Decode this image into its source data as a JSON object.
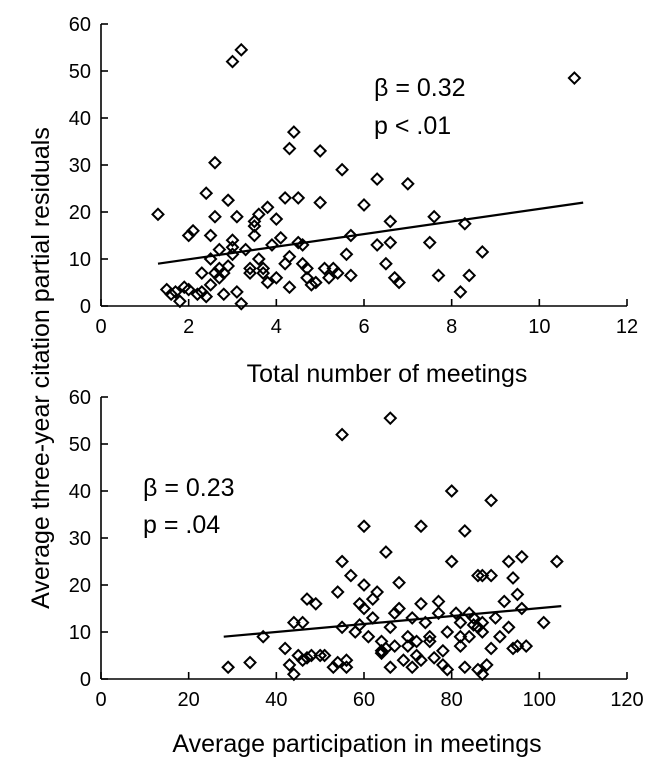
{
  "chart_data": {
    "type": "scatter",
    "shared_ylabel": "Average three-year citation partial residuals",
    "panels": [
      {
        "xlabel": "Total number of meetings",
        "xlim": [
          0,
          12
        ],
        "ylim": [
          0,
          60
        ],
        "xticks": [
          0,
          2,
          4,
          6,
          8,
          10,
          12
        ],
        "yticks": [
          0,
          10,
          20,
          30,
          40,
          50,
          60
        ],
        "annotation": {
          "beta": "β = 0.32",
          "p": "p < .01"
        },
        "fit": {
          "x": [
            1.3,
            11
          ],
          "y": [
            9,
            22
          ]
        },
        "points": [
          [
            1.3,
            19.5
          ],
          [
            1.5,
            3.5
          ],
          [
            1.6,
            2.5
          ],
          [
            1.7,
            3
          ],
          [
            1.8,
            1
          ],
          [
            1.9,
            4
          ],
          [
            2,
            3.5
          ],
          [
            2,
            15
          ],
          [
            2.1,
            16
          ],
          [
            2.2,
            2.5
          ],
          [
            2.3,
            3
          ],
          [
            2.3,
            7
          ],
          [
            2.4,
            24
          ],
          [
            2.4,
            2
          ],
          [
            2.5,
            4.5
          ],
          [
            2.5,
            10
          ],
          [
            2.5,
            15
          ],
          [
            2.6,
            19
          ],
          [
            2.6,
            7
          ],
          [
            2.6,
            30.5
          ],
          [
            2.7,
            6
          ],
          [
            2.7,
            8
          ],
          [
            2.7,
            12
          ],
          [
            2.8,
            2.5
          ],
          [
            2.8,
            7
          ],
          [
            2.9,
            8.5
          ],
          [
            2.9,
            22.5
          ],
          [
            3,
            11
          ],
          [
            3,
            12.5
          ],
          [
            3,
            14
          ],
          [
            3,
            52
          ],
          [
            3.1,
            3
          ],
          [
            3.1,
            19
          ],
          [
            3.2,
            0.5
          ],
          [
            3.2,
            54.5
          ],
          [
            3.3,
            12
          ],
          [
            3.4,
            7
          ],
          [
            3.4,
            8
          ],
          [
            3.5,
            15
          ],
          [
            3.5,
            17
          ],
          [
            3.5,
            18
          ],
          [
            3.6,
            10
          ],
          [
            3.6,
            19.5
          ],
          [
            3.7,
            7
          ],
          [
            3.7,
            8
          ],
          [
            3.8,
            5
          ],
          [
            3.8,
            21
          ],
          [
            3.9,
            13
          ],
          [
            4,
            6
          ],
          [
            4,
            18.5
          ],
          [
            4.1,
            14.5
          ],
          [
            4.2,
            9
          ],
          [
            4.2,
            23
          ],
          [
            4.3,
            4
          ],
          [
            4.3,
            10.5
          ],
          [
            4.3,
            33.5
          ],
          [
            4.4,
            37
          ],
          [
            4.5,
            13.5
          ],
          [
            4.5,
            23
          ],
          [
            4.6,
            13
          ],
          [
            4.6,
            9
          ],
          [
            4.7,
            6
          ],
          [
            4.7,
            8
          ],
          [
            4.8,
            4.5
          ],
          [
            4.9,
            5
          ],
          [
            5,
            22
          ],
          [
            5,
            33
          ],
          [
            5.1,
            8
          ],
          [
            5.2,
            6
          ],
          [
            5.3,
            8
          ],
          [
            5.4,
            7
          ],
          [
            5.5,
            29
          ],
          [
            5.6,
            11
          ],
          [
            5.7,
            6.5
          ],
          [
            5.7,
            15
          ],
          [
            6,
            21.5
          ],
          [
            6.3,
            13
          ],
          [
            6.3,
            27
          ],
          [
            6.5,
            9
          ],
          [
            6.6,
            13.5
          ],
          [
            6.6,
            18
          ],
          [
            6.7,
            6
          ],
          [
            6.8,
            5
          ],
          [
            7,
            26
          ],
          [
            7.5,
            13.5
          ],
          [
            7.6,
            19
          ],
          [
            7.7,
            6.5
          ],
          [
            8.2,
            3
          ],
          [
            8.3,
            17.5
          ],
          [
            8.4,
            6.5
          ],
          [
            8.7,
            11.5
          ],
          [
            10.8,
            48.5
          ]
        ]
      },
      {
        "xlabel": "Average participation in meetings",
        "xlim": [
          0,
          120
        ],
        "ylim": [
          0,
          60
        ],
        "xticks": [
          0,
          20,
          40,
          60,
          80,
          100,
          120
        ],
        "yticks": [
          0,
          10,
          20,
          30,
          40,
          50,
          60
        ],
        "annotation": {
          "beta": "β = 0.23",
          "p": "p = .04"
        },
        "fit": {
          "x": [
            28,
            105
          ],
          "y": [
            9,
            15.5
          ]
        },
        "points": [
          [
            29,
            2.5
          ],
          [
            34,
            3.5
          ],
          [
            37,
            9
          ],
          [
            42,
            6.5
          ],
          [
            43,
            3
          ],
          [
            44,
            1
          ],
          [
            44,
            12
          ],
          [
            45,
            5
          ],
          [
            46,
            4
          ],
          [
            46,
            12
          ],
          [
            47,
            17
          ],
          [
            47,
            4.5
          ],
          [
            48,
            5
          ],
          [
            49,
            16
          ],
          [
            50,
            5
          ],
          [
            51,
            5
          ],
          [
            53,
            2.5
          ],
          [
            54,
            3.5
          ],
          [
            54,
            18.5
          ],
          [
            55,
            52
          ],
          [
            55,
            25
          ],
          [
            55,
            11
          ],
          [
            56,
            4
          ],
          [
            56,
            2.5
          ],
          [
            57,
            22
          ],
          [
            58,
            10
          ],
          [
            59,
            11.5
          ],
          [
            59,
            16
          ],
          [
            60,
            32.5
          ],
          [
            60,
            15
          ],
          [
            60,
            20
          ],
          [
            61,
            9
          ],
          [
            62,
            13
          ],
          [
            62,
            17
          ],
          [
            63,
            18.5
          ],
          [
            64,
            8
          ],
          [
            64,
            5.5
          ],
          [
            64,
            6
          ],
          [
            65,
            27
          ],
          [
            65,
            6.5
          ],
          [
            66,
            11
          ],
          [
            66,
            2.5
          ],
          [
            66,
            55.5
          ],
          [
            67,
            14
          ],
          [
            67,
            7
          ],
          [
            68,
            20.5
          ],
          [
            68,
            15
          ],
          [
            69,
            4
          ],
          [
            70,
            9
          ],
          [
            70,
            7
          ],
          [
            71,
            13
          ],
          [
            71,
            2.5
          ],
          [
            72,
            8
          ],
          [
            72,
            5
          ],
          [
            73,
            32.5
          ],
          [
            73,
            16
          ],
          [
            73,
            4
          ],
          [
            74,
            12
          ],
          [
            75,
            8
          ],
          [
            75,
            9
          ],
          [
            76,
            4.5
          ],
          [
            77,
            16.5
          ],
          [
            77,
            14
          ],
          [
            78,
            3
          ],
          [
            78,
            6
          ],
          [
            79,
            2
          ],
          [
            79,
            10
          ],
          [
            80,
            25
          ],
          [
            80,
            40
          ],
          [
            81,
            14
          ],
          [
            82,
            12
          ],
          [
            82,
            9
          ],
          [
            82,
            7
          ],
          [
            83,
            31.5
          ],
          [
            83,
            2.5
          ],
          [
            84,
            9
          ],
          [
            84,
            14
          ],
          [
            85,
            11.5
          ],
          [
            85,
            13
          ],
          [
            86,
            22
          ],
          [
            86,
            11
          ],
          [
            86,
            2
          ],
          [
            87,
            10
          ],
          [
            87,
            12
          ],
          [
            87,
            22
          ],
          [
            87,
            1
          ],
          [
            88,
            3
          ],
          [
            89,
            22
          ],
          [
            89,
            6.5
          ],
          [
            89,
            38
          ],
          [
            90,
            13
          ],
          [
            91,
            9
          ],
          [
            92,
            16.5
          ],
          [
            93,
            25
          ],
          [
            93,
            11
          ],
          [
            94,
            21.5
          ],
          [
            94,
            6.5
          ],
          [
            95,
            18
          ],
          [
            95,
            7
          ],
          [
            96,
            26
          ],
          [
            96,
            15
          ],
          [
            97,
            7
          ],
          [
            101,
            12
          ],
          [
            104,
            25
          ]
        ]
      }
    ]
  }
}
